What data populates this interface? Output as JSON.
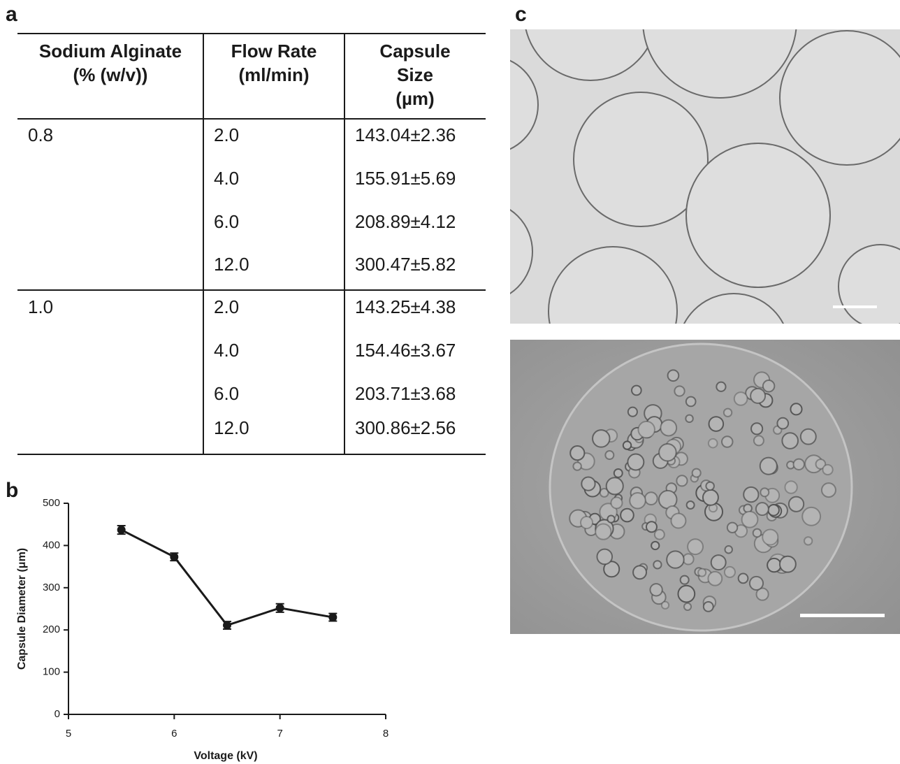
{
  "panels": {
    "a": "a",
    "b": "b",
    "c": "c"
  },
  "table": {
    "headers": [
      [
        "Sodium Alginate",
        "(% (w/v))"
      ],
      [
        "Flow Rate",
        "(ml/min)"
      ],
      [
        "Capsule",
        "Size",
        "(µm)"
      ]
    ],
    "groups": [
      {
        "alginate": "0.8",
        "rows": [
          [
            "2.0",
            "143.04±2.36"
          ],
          [
            "4.0",
            "155.91±5.69"
          ],
          [
            "6.0",
            "208.89±4.12"
          ],
          [
            "12.0",
            "300.47±5.82"
          ]
        ]
      },
      {
        "alginate": "1.0",
        "rows": [
          [
            "2.0",
            "143.25±4.38"
          ],
          [
            "4.0",
            "154.46±3.67"
          ],
          [
            "6.0",
            "203.71±3.68"
          ],
          [
            "12.0",
            "300.86±2.56"
          ]
        ]
      }
    ]
  },
  "chart_data": {
    "type": "line",
    "xlabel": "Voltage (kV)",
    "ylabel": "Capsule Diameter (μm)",
    "x": [
      5.5,
      6,
      6.5,
      7,
      7.5
    ],
    "values": [
      437,
      373,
      211,
      252,
      230
    ],
    "errors": [
      10,
      9,
      9,
      10,
      9
    ],
    "color": "#1a1a1a",
    "xlim": [
      5,
      8
    ],
    "xticks": [
      5,
      6,
      7,
      8
    ],
    "ylim": [
      0,
      500
    ],
    "yticks": [
      0,
      100,
      200,
      300,
      400,
      500
    ]
  }
}
